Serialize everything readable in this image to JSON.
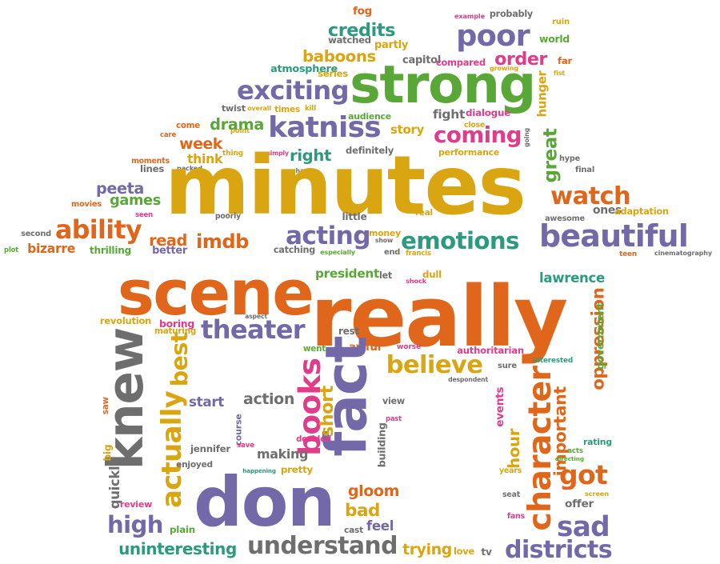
{
  "colors": {
    "orange": "#E0661B",
    "gold": "#D9A511",
    "green": "#59A837",
    "purple": "#7368A8",
    "teal": "#2C9A7E",
    "pink": "#E03C8A",
    "grey": "#6E6E6E"
  },
  "words": [
    {
      "id": "fog",
      "text": "fog",
      "color": "orange"
    },
    {
      "id": "example",
      "text": "example",
      "color": "pink"
    },
    {
      "id": "probably",
      "text": "probably",
      "color": "grey"
    },
    {
      "id": "ruin",
      "text": "ruin",
      "color": "gold"
    },
    {
      "id": "credits",
      "text": "credits",
      "color": "teal"
    },
    {
      "id": "partly",
      "text": "partly",
      "color": "gold"
    },
    {
      "id": "poor",
      "text": "poor",
      "color": "purple"
    },
    {
      "id": "world",
      "text": "world",
      "color": "green"
    },
    {
      "id": "watched",
      "text": "watched",
      "color": "grey"
    },
    {
      "id": "baboons",
      "text": "baboons",
      "color": "gold"
    },
    {
      "id": "capitol",
      "text": "capitol",
      "color": "grey"
    },
    {
      "id": "compared",
      "text": "compared",
      "color": "pink"
    },
    {
      "id": "growing",
      "text": "growing",
      "color": "gold"
    },
    {
      "id": "order",
      "text": "order",
      "color": "pink"
    },
    {
      "id": "far",
      "text": "far",
      "color": "orange"
    },
    {
      "id": "fist",
      "text": "fist",
      "color": "gold"
    },
    {
      "id": "atmosphere",
      "text": "atmosphere",
      "color": "teal"
    },
    {
      "id": "series",
      "text": "series",
      "color": "gold"
    },
    {
      "id": "strong",
      "text": "strong",
      "color": "green"
    },
    {
      "id": "exciting",
      "text": "exciting",
      "color": "purple"
    },
    {
      "id": "hunger",
      "text": "hunger",
      "color": "gold"
    },
    {
      "id": "twist",
      "text": "twist",
      "color": "grey"
    },
    {
      "id": "overall",
      "text": "overall",
      "color": "gold"
    },
    {
      "id": "times",
      "text": "times",
      "color": "gold"
    },
    {
      "id": "kill",
      "text": "kill",
      "color": "gold"
    },
    {
      "id": "audience",
      "text": "audience",
      "color": "green"
    },
    {
      "id": "fight",
      "text": "fight",
      "color": "grey"
    },
    {
      "id": "dialogue",
      "text": "dialogue",
      "color": "pink"
    },
    {
      "id": "close",
      "text": "close",
      "color": "gold"
    },
    {
      "id": "point",
      "text": "point",
      "color": "gold"
    },
    {
      "id": "come",
      "text": "come",
      "color": "orange"
    },
    {
      "id": "drama",
      "text": "drama",
      "color": "green"
    },
    {
      "id": "katniss",
      "text": "katniss",
      "color": "purple"
    },
    {
      "id": "story",
      "text": "story",
      "color": "gold"
    },
    {
      "id": "coming",
      "text": "coming",
      "color": "pink"
    },
    {
      "id": "going",
      "text": "going",
      "color": "grey"
    },
    {
      "id": "great",
      "text": "great",
      "color": "green"
    },
    {
      "id": "care",
      "text": "care",
      "color": "orange"
    },
    {
      "id": "week",
      "text": "week",
      "color": "orange"
    },
    {
      "id": "thing",
      "text": "thing",
      "color": "gold"
    },
    {
      "id": "simply",
      "text": "simply",
      "color": "pink"
    },
    {
      "id": "right",
      "text": "right",
      "color": "teal"
    },
    {
      "id": "definitely",
      "text": "definitely",
      "color": "grey"
    },
    {
      "id": "performance",
      "text": "performance",
      "color": "gold"
    },
    {
      "id": "hype",
      "text": "hype",
      "color": "grey"
    },
    {
      "id": "think",
      "text": "think",
      "color": "gold"
    },
    {
      "id": "moments",
      "text": "moments",
      "color": "orange"
    },
    {
      "id": "packed",
      "text": "packed",
      "color": "grey"
    },
    {
      "id": "lines",
      "text": "lines",
      "color": "grey"
    },
    {
      "id": "chance",
      "text": "chance",
      "color": "grey"
    },
    {
      "id": "final",
      "text": "final",
      "color": "grey"
    },
    {
      "id": "minutes",
      "text": "minutes",
      "color": "gold"
    },
    {
      "id": "peeta",
      "text": "peeta",
      "color": "purple"
    },
    {
      "id": "games",
      "text": "games",
      "color": "green"
    },
    {
      "id": "movies",
      "text": "movies",
      "color": "orange"
    },
    {
      "id": "watch",
      "text": "watch",
      "color": "orange"
    },
    {
      "id": "seen",
      "text": "seen",
      "color": "pink"
    },
    {
      "id": "poorly",
      "text": "poorly",
      "color": "grey"
    },
    {
      "id": "little",
      "text": "little",
      "color": "grey"
    },
    {
      "id": "real",
      "text": "real",
      "color": "gold"
    },
    {
      "id": "ones",
      "text": "ones",
      "color": "grey"
    },
    {
      "id": "adaptation",
      "text": "adaptation",
      "color": "gold"
    },
    {
      "id": "awesome",
      "text": "awesome",
      "color": "grey"
    },
    {
      "id": "ability",
      "text": "ability",
      "color": "orange"
    },
    {
      "id": "second",
      "text": "second",
      "color": "grey"
    },
    {
      "id": "read",
      "text": "read",
      "color": "orange"
    },
    {
      "id": "imdb",
      "text": "imdb",
      "color": "orange"
    },
    {
      "id": "acting",
      "text": "acting",
      "color": "purple"
    },
    {
      "id": "money",
      "text": "money",
      "color": "gold"
    },
    {
      "id": "show",
      "text": "show",
      "color": "grey"
    },
    {
      "id": "emotions",
      "text": "emotions",
      "color": "teal"
    },
    {
      "id": "beautiful",
      "text": "beautiful",
      "color": "purple"
    },
    {
      "id": "plot",
      "text": "plot",
      "color": "green"
    },
    {
      "id": "bizarre",
      "text": "bizarre",
      "color": "orange"
    },
    {
      "id": "thrilling",
      "text": "thrilling",
      "color": "green"
    },
    {
      "id": "better",
      "text": "better",
      "color": "purple"
    },
    {
      "id": "catching",
      "text": "catching",
      "color": "grey"
    },
    {
      "id": "especially",
      "text": "especially",
      "color": "green"
    },
    {
      "id": "end",
      "text": "end",
      "color": "grey"
    },
    {
      "id": "francis",
      "text": "francis",
      "color": "gold"
    },
    {
      "id": "teen",
      "text": "teen",
      "color": "orange"
    },
    {
      "id": "cinematography",
      "text": "cinematography",
      "color": "grey"
    },
    {
      "id": "scene",
      "text": "scene",
      "color": "orange"
    },
    {
      "id": "president",
      "text": "president",
      "color": "green"
    },
    {
      "id": "let",
      "text": "let",
      "color": "grey"
    },
    {
      "id": "dull",
      "text": "dull",
      "color": "gold"
    },
    {
      "id": "shock",
      "text": "shock",
      "color": "pink"
    },
    {
      "id": "lawrence",
      "text": "lawrence",
      "color": "teal"
    },
    {
      "id": "really",
      "text": "really",
      "color": "orange"
    },
    {
      "id": "aspect",
      "text": "aspect",
      "color": "grey"
    },
    {
      "id": "revolution",
      "text": "revolution",
      "color": "gold"
    },
    {
      "id": "boring",
      "text": "boring",
      "color": "pink"
    },
    {
      "id": "maturing",
      "text": "maturing",
      "color": "gold"
    },
    {
      "id": "theater",
      "text": "theater",
      "color": "purple"
    },
    {
      "id": "rest",
      "text": "rest",
      "color": "grey"
    },
    {
      "id": "oppression",
      "text": "oppression",
      "color": "orange"
    },
    {
      "id": "government",
      "text": "government",
      "color": "green"
    },
    {
      "id": "knew",
      "text": "knew",
      "color": "grey"
    },
    {
      "id": "best",
      "text": "best",
      "color": "gold"
    },
    {
      "id": "went",
      "text": "went",
      "color": "green"
    },
    {
      "id": "awful",
      "text": "awful",
      "color": "orange"
    },
    {
      "id": "worse",
      "text": "worse",
      "color": "pink"
    },
    {
      "id": "authoritarian",
      "text": "authoritarian",
      "color": "pink"
    },
    {
      "id": "interested",
      "text": "interested",
      "color": "teal"
    },
    {
      "id": "believe",
      "text": "believe",
      "color": "gold"
    },
    {
      "id": "sure",
      "text": "sure",
      "color": "grey"
    },
    {
      "id": "despondent",
      "text": "despondent",
      "color": "grey"
    },
    {
      "id": "fact",
      "text": "fact",
      "color": "purple"
    },
    {
      "id": "books",
      "text": "books",
      "color": "pink"
    },
    {
      "id": "character",
      "text": "character",
      "color": "orange"
    },
    {
      "id": "important",
      "text": "important",
      "color": "orange"
    },
    {
      "id": "actually",
      "text": "actually",
      "color": "gold"
    },
    {
      "id": "start",
      "text": "start",
      "color": "purple"
    },
    {
      "id": "action",
      "text": "action",
      "color": "grey"
    },
    {
      "id": "short",
      "text": "short",
      "color": "gold"
    },
    {
      "id": "view",
      "text": "view",
      "color": "grey"
    },
    {
      "id": "events",
      "text": "events",
      "color": "pink"
    },
    {
      "id": "saw",
      "text": "saw",
      "color": "orange"
    },
    {
      "id": "past",
      "text": "past",
      "color": "pink"
    },
    {
      "id": "course",
      "text": "course",
      "color": "purple"
    },
    {
      "id": "save",
      "text": "save",
      "color": "pink"
    },
    {
      "id": "jennifer",
      "text": "jennifer",
      "color": "grey"
    },
    {
      "id": "making",
      "text": "making",
      "color": "grey"
    },
    {
      "id": "decided",
      "text": "decided",
      "color": "pink"
    },
    {
      "id": "building",
      "text": "building",
      "color": "grey"
    },
    {
      "id": "rating",
      "text": "rating",
      "color": "teal"
    },
    {
      "id": "acts",
      "text": "acts",
      "color": "green"
    },
    {
      "id": "directing",
      "text": "directing",
      "color": "green"
    },
    {
      "id": "hour",
      "text": "hour",
      "color": "gold"
    },
    {
      "id": "big",
      "text": "big",
      "color": "gold"
    },
    {
      "id": "enjoyed",
      "text": "enjoyed",
      "color": "grey"
    },
    {
      "id": "happening",
      "text": "happening",
      "color": "teal"
    },
    {
      "id": "pretty",
      "text": "pretty",
      "color": "gold"
    },
    {
      "id": "years",
      "text": "years",
      "color": "gold"
    },
    {
      "id": "got",
      "text": "got",
      "color": "orange"
    },
    {
      "id": "quickly",
      "text": "quickly",
      "color": "grey"
    },
    {
      "id": "don",
      "text": "don",
      "color": "purple"
    },
    {
      "id": "gloom",
      "text": "gloom",
      "color": "orange"
    },
    {
      "id": "seat",
      "text": "seat",
      "color": "grey"
    },
    {
      "id": "screen",
      "text": "screen",
      "color": "gold"
    },
    {
      "id": "review",
      "text": "review",
      "color": "pink"
    },
    {
      "id": "offer",
      "text": "offer",
      "color": "grey"
    },
    {
      "id": "bad",
      "text": "bad",
      "color": "gold"
    },
    {
      "id": "fans",
      "text": "fans",
      "color": "pink"
    },
    {
      "id": "high",
      "text": "high",
      "color": "purple"
    },
    {
      "id": "plain",
      "text": "plain",
      "color": "green"
    },
    {
      "id": "feel",
      "text": "feel",
      "color": "purple"
    },
    {
      "id": "cast",
      "text": "cast",
      "color": "grey"
    },
    {
      "id": "sad",
      "text": "sad",
      "color": "purple"
    },
    {
      "id": "uninteresting",
      "text": "uninteresting",
      "color": "teal"
    },
    {
      "id": "understand",
      "text": "understand",
      "color": "grey"
    },
    {
      "id": "trying",
      "text": "trying",
      "color": "gold"
    },
    {
      "id": "love",
      "text": "love",
      "color": "gold"
    },
    {
      "id": "tv",
      "text": "tv",
      "color": "grey"
    },
    {
      "id": "districts",
      "text": "districts",
      "color": "purple"
    }
  ]
}
